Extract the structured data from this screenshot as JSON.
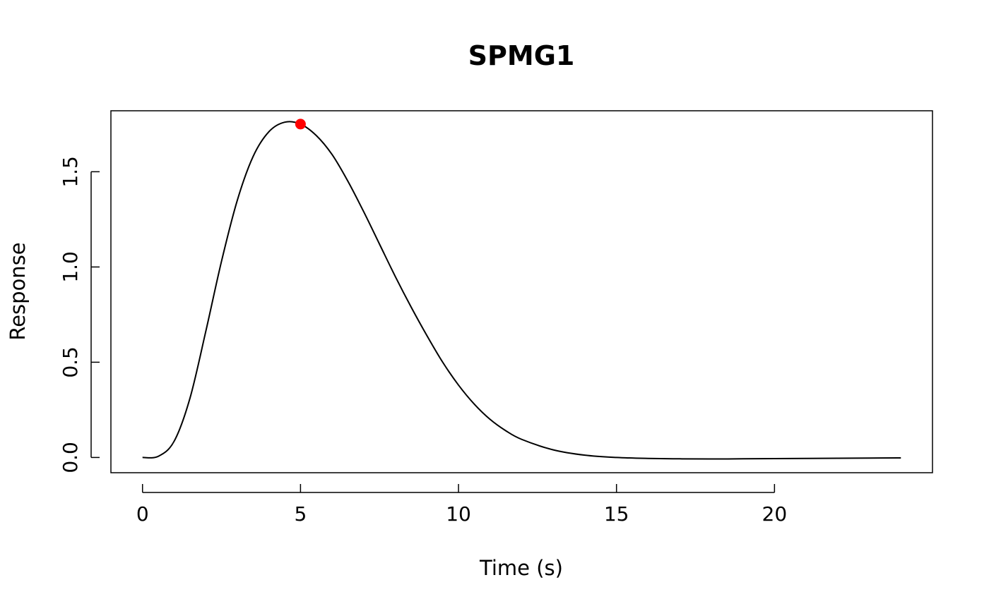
{
  "chart_data": {
    "type": "line",
    "title": "SPMG1",
    "xlabel": "Time (s)",
    "ylabel": "Response",
    "xlim": [
      -1,
      25
    ],
    "ylim": [
      -0.08,
      1.82
    ],
    "xticks": [
      0,
      5,
      10,
      15,
      20
    ],
    "xtick_labels": [
      "0",
      "5",
      "10",
      "15",
      "20"
    ],
    "yticks": [
      0,
      0.5,
      1,
      1.5
    ],
    "ytick_labels": [
      "0.0",
      "0.5",
      "1.0",
      "1.5"
    ],
    "grid": false,
    "legend": "none",
    "series": [
      {
        "color": "#000000",
        "x": [
          0,
          0.5,
          1,
          1.5,
          2,
          2.5,
          3,
          3.5,
          4,
          4.5,
          5,
          5.5,
          6,
          6.5,
          7,
          7.5,
          8,
          8.5,
          9,
          9.5,
          10,
          10.5,
          11,
          11.5,
          12,
          13,
          14,
          15,
          16,
          17,
          18,
          19,
          20,
          21,
          22,
          23,
          24
        ],
        "y": [
          0,
          0.006,
          0.085,
          0.31,
          0.66,
          1.03,
          1.35,
          1.58,
          1.71,
          1.76,
          1.75,
          1.69,
          1.59,
          1.45,
          1.29,
          1.12,
          0.95,
          0.79,
          0.64,
          0.5,
          0.38,
          0.28,
          0.2,
          0.14,
          0.095,
          0.04,
          0.012,
          0,
          -0.005,
          -0.007,
          -0.008,
          -0.007,
          -0.006,
          -0.005,
          -0.004,
          -0.003,
          -0.002
        ]
      }
    ],
    "points": [
      {
        "x": 5,
        "y": 1.75,
        "color": "#ff0000"
      }
    ]
  }
}
